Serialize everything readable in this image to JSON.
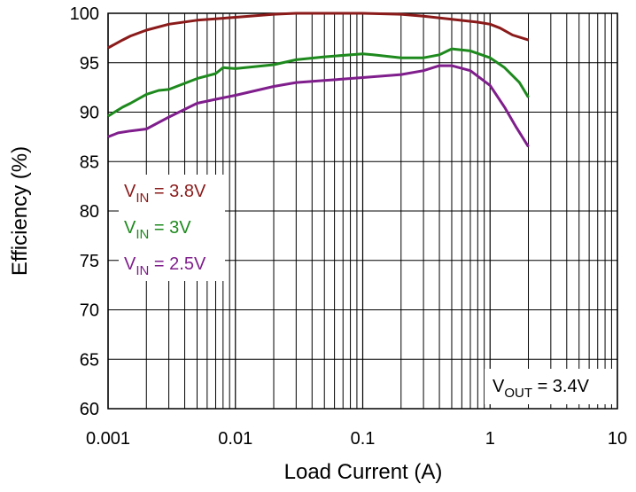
{
  "chart_data": {
    "type": "line",
    "xlabel": "Load Current (A)",
    "ylabel": "Efficiency (%)",
    "xscale": "log",
    "xlim": [
      0.001,
      10
    ],
    "xticks": [
      0.001,
      0.01,
      0.1,
      1,
      10
    ],
    "ylim": [
      60,
      100
    ],
    "yticks": [
      60,
      65,
      70,
      75,
      80,
      85,
      90,
      95,
      100
    ],
    "grid": true,
    "minor_grid": true,
    "legend": "upper left",
    "annotation": [
      "V",
      "OUT",
      " = 3.4V"
    ],
    "series": [
      {
        "name": [
          "V",
          "IN",
          " = 3.8V"
        ],
        "color": "#8b1a1a",
        "x": [
          0.001,
          0.0013,
          0.0015,
          0.002,
          0.003,
          0.005,
          0.01,
          0.02,
          0.03,
          0.1,
          0.2,
          0.3,
          0.5,
          0.8,
          1,
          1.2,
          1.5,
          2
        ],
        "values": [
          96.5,
          97.3,
          97.7,
          98.3,
          98.9,
          99.3,
          99.6,
          99.9,
          100,
          100,
          99.9,
          99.7,
          99.4,
          99.1,
          98.9,
          98.5,
          97.8,
          97.3
        ]
      },
      {
        "name": [
          "V",
          "IN",
          " = 3V"
        ],
        "color": "#1e8a1e",
        "x": [
          0.001,
          0.0013,
          0.0015,
          0.002,
          0.0025,
          0.003,
          0.005,
          0.007,
          0.008,
          0.01,
          0.02,
          0.03,
          0.05,
          0.1,
          0.12,
          0.2,
          0.3,
          0.4,
          0.5,
          0.7,
          1,
          1.3,
          1.7,
          2
        ],
        "values": [
          89.6,
          90.5,
          90.9,
          91.8,
          92.2,
          92.3,
          93.4,
          93.9,
          94.5,
          94.4,
          94.8,
          95.3,
          95.6,
          95.9,
          95.8,
          95.5,
          95.5,
          95.8,
          96.4,
          96.2,
          95.5,
          94.5,
          93,
          91.5
        ]
      },
      {
        "name": [
          "V",
          "IN",
          " = 2.5V"
        ],
        "color": "#7f1e8c",
        "x": [
          0.001,
          0.0012,
          0.0015,
          0.002,
          0.003,
          0.005,
          0.007,
          0.01,
          0.02,
          0.03,
          0.05,
          0.1,
          0.2,
          0.3,
          0.4,
          0.5,
          0.7,
          1,
          1.3,
          1.6,
          2
        ],
        "values": [
          87.5,
          87.9,
          88.1,
          88.3,
          89.5,
          90.9,
          91.3,
          91.7,
          92.6,
          93,
          93.2,
          93.5,
          93.8,
          94.2,
          94.7,
          94.7,
          94.2,
          92.7,
          90.5,
          88.5,
          86.5
        ]
      }
    ]
  }
}
